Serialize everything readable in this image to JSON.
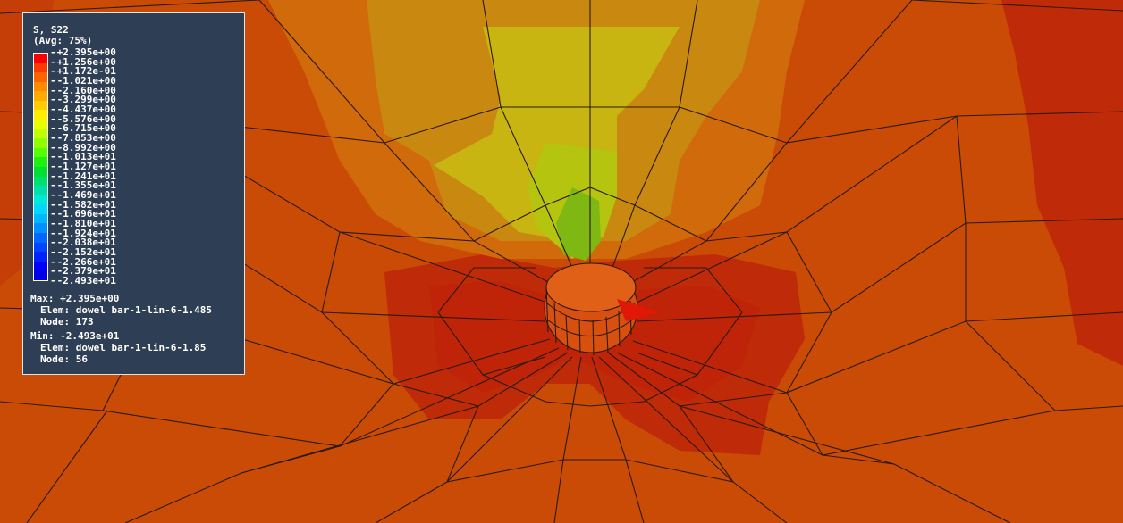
{
  "legend": {
    "title": "S, S22",
    "subtitle": "(Avg: 75%)",
    "labels": [
      "+2.395e+00",
      "+1.256e+00",
      "+1.172e-01",
      "-1.021e+00",
      "-2.160e+00",
      "-3.299e+00",
      "-4.437e+00",
      "-5.576e+00",
      "-6.715e+00",
      "-7.853e+00",
      "-8.992e+00",
      "-1.013e+01",
      "-1.127e+01",
      "-1.241e+01",
      "-1.355e+01",
      "-1.469e+01",
      "-1.582e+01",
      "-1.696e+01",
      "-1.810e+01",
      "-1.924e+01",
      "-2.038e+01",
      "-2.152e+01",
      "-2.266e+01",
      "-2.379e+01",
      "-2.493e+01"
    ],
    "colors": [
      "#ff0000",
      "#ff3a00",
      "#ff6400",
      "#ff8c00",
      "#ffaa00",
      "#ffcc00",
      "#ffee00",
      "#e8ff00",
      "#bfff00",
      "#8fff00",
      "#55ff00",
      "#20f010",
      "#00e030",
      "#00e070",
      "#00e0a8",
      "#00e8d8",
      "#00d8ff",
      "#00b8ff",
      "#0090ff",
      "#0068ff",
      "#0044ff",
      "#0022ff",
      "#0000ff",
      "#0000e6"
    ],
    "max": {
      "value_line": "Max: +2.395e+00",
      "elem_line": "Elem: dowel bar-1-lin-6-1.485",
      "node_line": "Node: 173"
    },
    "min": {
      "value_line": "Min: -2.493e+01",
      "elem_line": "Elem: dowel bar-1-lin-6-1.85",
      "node_line": "Node: 56"
    }
  },
  "contour_colors": {
    "base": "#c94b06",
    "dark_red": "#bf2a08",
    "orange": "#d06a0a",
    "amber": "#c9880f",
    "yellow": "#c9b511",
    "yellow_green": "#b5c40e",
    "green": "#7fb713"
  }
}
